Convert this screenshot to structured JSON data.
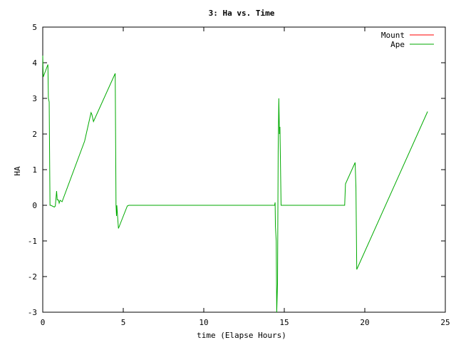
{
  "chart_data": {
    "type": "line",
    "title": "3: Ha vs. Time",
    "xlabel": "time (Elapse Hours)",
    "ylabel": "HA",
    "xlim": [
      0,
      25
    ],
    "ylim": [
      -3,
      5
    ],
    "xticks": [
      "0",
      "5",
      "10",
      "15",
      "20",
      "25"
    ],
    "yticks": [
      "-3",
      "-2",
      "-1",
      "0",
      "1",
      "2",
      "3",
      "4",
      "5"
    ],
    "grid": false,
    "legend_position": "top-right",
    "series": [
      {
        "name": "Mount",
        "color": "#ff0000",
        "points": []
      },
      {
        "name": "Ape",
        "color": "#00aa00",
        "points": [
          [
            0.0,
            4.2
          ],
          [
            0.03,
            3.6
          ],
          [
            0.32,
            3.95
          ],
          [
            0.35,
            3.0
          ],
          [
            0.4,
            2.9
          ],
          [
            0.45,
            0.0
          ],
          [
            0.5,
            0.0
          ],
          [
            0.72,
            -0.05
          ],
          [
            0.78,
            -0.02
          ],
          [
            0.86,
            0.4
          ],
          [
            0.9,
            0.15
          ],
          [
            0.98,
            0.15
          ],
          [
            1.02,
            0.06
          ],
          [
            1.08,
            0.14
          ],
          [
            1.2,
            0.1
          ],
          [
            2.6,
            1.8
          ],
          [
            3.0,
            2.6
          ],
          [
            3.05,
            2.55
          ],
          [
            3.15,
            2.35
          ],
          [
            4.5,
            3.7
          ],
          [
            4.55,
            0.0
          ],
          [
            4.58,
            -0.3
          ],
          [
            4.6,
            0.0
          ],
          [
            4.7,
            -0.65
          ],
          [
            5.25,
            -0.02
          ],
          [
            5.35,
            0.0
          ],
          [
            14.4,
            0.0
          ],
          [
            14.43,
            0.08
          ],
          [
            14.45,
            -0.6
          ],
          [
            14.5,
            -1.0
          ],
          [
            14.53,
            -3.0
          ],
          [
            14.58,
            -2.2
          ],
          [
            14.62,
            1.5
          ],
          [
            14.66,
            3.0
          ],
          [
            14.7,
            2.0
          ],
          [
            14.73,
            2.2
          ],
          [
            14.8,
            0.0
          ],
          [
            18.75,
            0.0
          ],
          [
            18.8,
            0.6
          ],
          [
            19.4,
            1.2
          ],
          [
            19.45,
            0.5
          ],
          [
            19.5,
            -1.8
          ],
          [
            23.9,
            2.63
          ]
        ]
      }
    ]
  }
}
